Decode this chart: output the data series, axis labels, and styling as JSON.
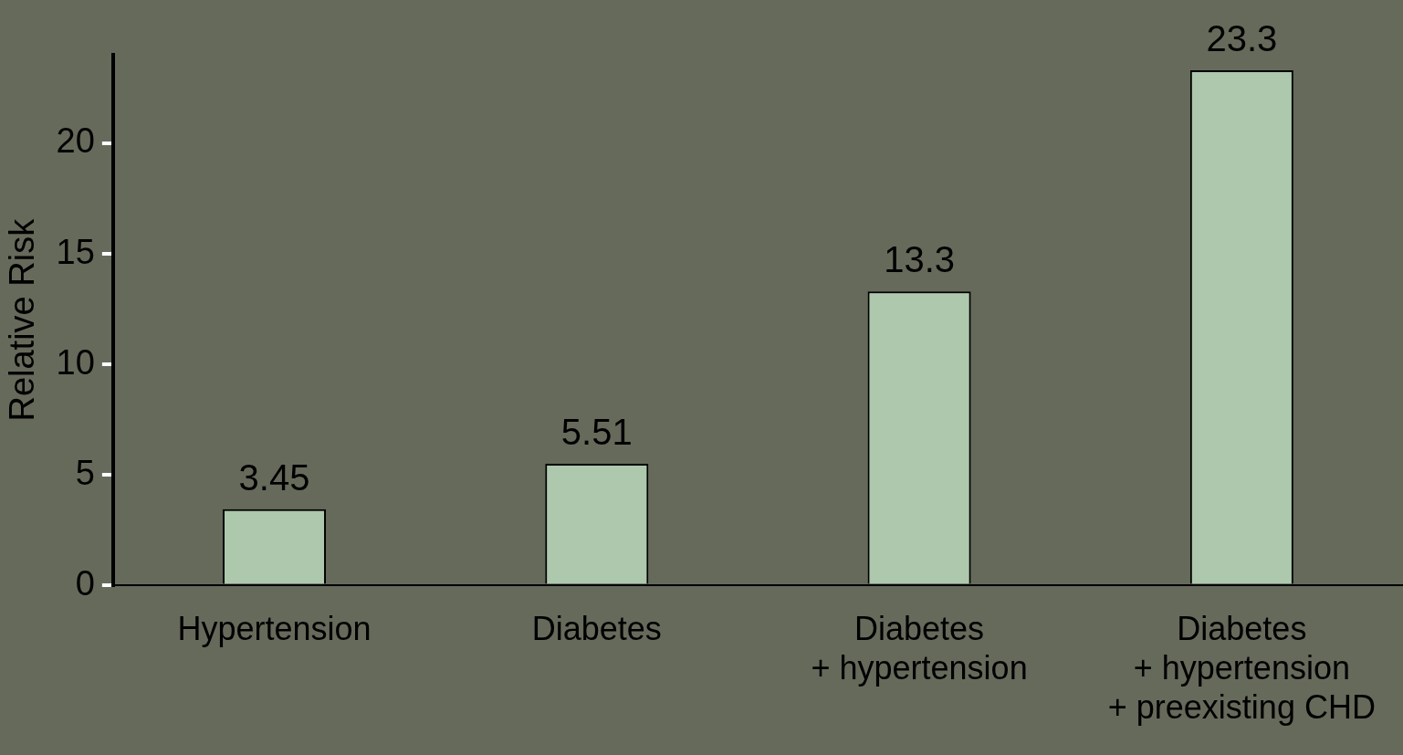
{
  "chart_data": {
    "type": "bar",
    "ylabel": "Relative Risk",
    "categories": [
      "Hypertension",
      "Diabetes",
      "Diabetes\n+ hypertension",
      "Diabetes\n+ hypertension\n+ preexisting CHD"
    ],
    "values": [
      3.45,
      5.51,
      13.3,
      23.3
    ],
    "color": "#adc8ad",
    "ylim": [
      0,
      24
    ],
    "yticks": [
      0,
      5,
      10,
      15,
      20
    ],
    "grid": false,
    "legend": false,
    "data_labels": true
  }
}
